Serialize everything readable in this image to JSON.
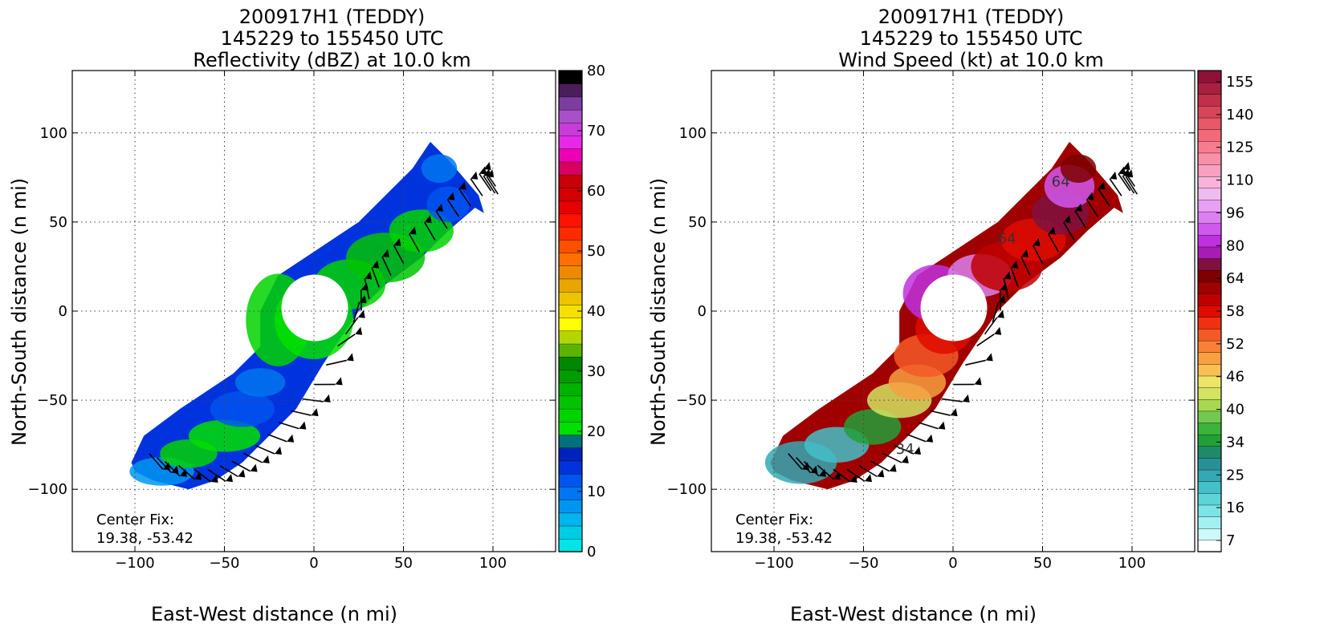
{
  "chart_data": [
    {
      "type": "heatmap",
      "title": [
        "200917H1 (TEDDY)",
        "145229 to 155450 UTC",
        "Reflectivity (dBZ) at 10.0 km"
      ],
      "xlabel": "East-West distance (n mi)",
      "ylabel": "North-South distance (n mi)",
      "xlim": [
        -135,
        135
      ],
      "ylim": [
        -135,
        135
      ],
      "x_ticks": [
        "−100",
        "−50",
        "0",
        "50",
        "100"
      ],
      "x_tick_values": [
        -100,
        -50,
        0,
        50,
        100
      ],
      "y_ticks": [
        "100",
        "50",
        "0",
        "−50",
        "−100"
      ],
      "y_tick_values": [
        100,
        50,
        0,
        -50,
        -100
      ],
      "grid": true,
      "annotation": [
        "Center Fix:",
        "19.38, -53.42"
      ],
      "colorbar": {
        "min": 0,
        "max": 80,
        "tick_labels": [
          "80",
          "70",
          "60",
          "50",
          "40",
          "30",
          "20",
          "10",
          "0"
        ],
        "tick_values": [
          80,
          70,
          60,
          50,
          40,
          30,
          20,
          10,
          0
        ],
        "colors": [
          "#00e5e5",
          "#00cce5",
          "#00b4ee",
          "#0096f0",
          "#0076f0",
          "#0055ee",
          "#0033dd",
          "#0022bb",
          "#00707a",
          "#00e000",
          "#00d400",
          "#00c400",
          "#00b200",
          "#009c00",
          "#008800",
          "#5cb400",
          "#b4d600",
          "#ffff00",
          "#f6e000",
          "#ecc400",
          "#e8a600",
          "#ee8a00",
          "#ff7000",
          "#ff5000",
          "#ff2a00",
          "#ff1200",
          "#e80000",
          "#d40000",
          "#c80008",
          "#d80060",
          "#ee00b4",
          "#e828e8",
          "#c83cdc",
          "#a850c8",
          "#7c3ca0",
          "#4a1e5a",
          "#000000"
        ]
      },
      "center_fix": [
        0,
        0
      ],
      "eye_radius": 12
    },
    {
      "type": "heatmap",
      "title": [
        "200917H1 (TEDDY)",
        "145229 to 155450 UTC",
        "Wind Speed (kt) at 10.0 km"
      ],
      "xlabel": "East-West distance (n mi)",
      "ylabel": "North-South distance (n mi)",
      "xlim": [
        -135,
        135
      ],
      "ylim": [
        -135,
        135
      ],
      "x_ticks": [
        "−100",
        "−50",
        "0",
        "50",
        "100"
      ],
      "x_tick_values": [
        -100,
        -50,
        0,
        50,
        100
      ],
      "y_ticks": [
        "100",
        "50",
        "0",
        "−50",
        "−100"
      ],
      "y_tick_values": [
        100,
        50,
        0,
        -50,
        -100
      ],
      "grid": true,
      "annotation": [
        "Center Fix:",
        "19.38, -53.42"
      ],
      "contour_labels": [
        "64",
        "64",
        "34"
      ],
      "colorbar": {
        "tick_labels": [
          "155",
          "140",
          "125",
          "110",
          "96",
          "80",
          "64",
          "58",
          "52",
          "46",
          "40",
          "34",
          "25",
          "16",
          "7"
        ],
        "colors": [
          "#ffffff",
          "#ccfafa",
          "#a4f0f0",
          "#7ce4e6",
          "#5cd4d8",
          "#44c0c8",
          "#34a8b4",
          "#2a9098",
          "#1e8a6a",
          "#22a038",
          "#3cb43c",
          "#74c850",
          "#a8d850",
          "#d2e460",
          "#eee468",
          "#f8c050",
          "#f8a040",
          "#f88038",
          "#f45a28",
          "#f03010",
          "#e00c00",
          "#c00000",
          "#a00000",
          "#7e0000",
          "#801040",
          "#a81cb4",
          "#c030e0",
          "#d058ee",
          "#dc80f0",
          "#e8a0f4",
          "#f0bcf0",
          "#f8b4d8",
          "#f8a0c0",
          "#f890a8",
          "#f87c90",
          "#f06a78",
          "#e85868",
          "#d84458",
          "#c03048",
          "#a82040",
          "#901038"
        ]
      },
      "center_fix": [
        0,
        0
      ],
      "eye_radius": 12
    }
  ]
}
